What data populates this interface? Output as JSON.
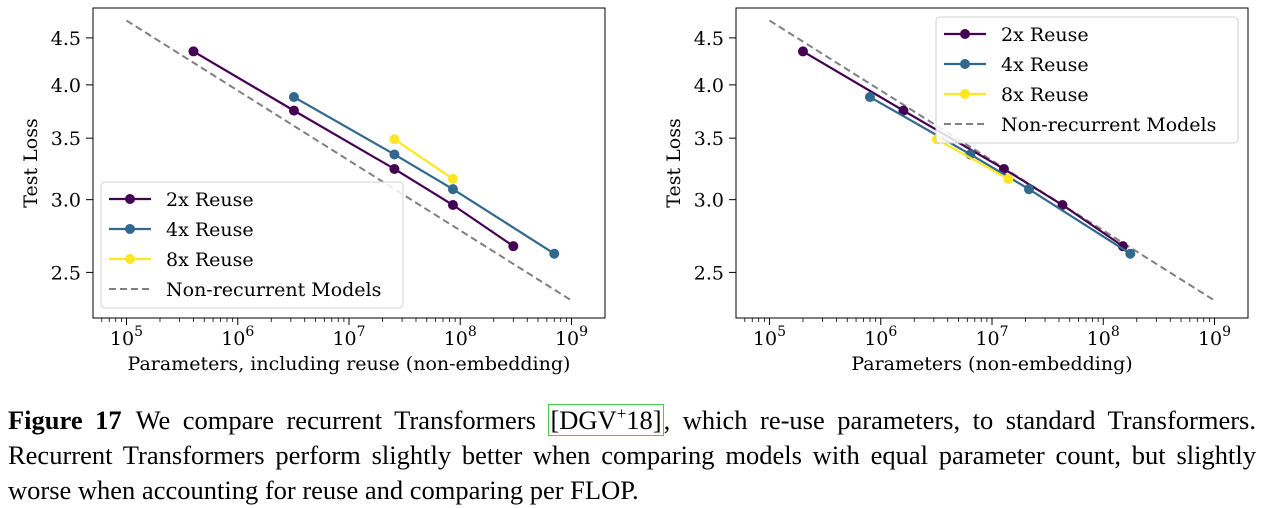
{
  "chart_data": [
    {
      "type": "line",
      "xscale": "log",
      "yscale": "log",
      "xlabel": "Parameters, including reuse (non-embedding)",
      "ylabel": "Test Loss",
      "xlim": [
        50000,
        2000000000
      ],
      "ylim": [
        2.23,
        4.85
      ],
      "xticks": [
        100000,
        1000000,
        10000000,
        100000000,
        1000000000
      ],
      "xtick_exponents": [
        "5",
        "6",
        "7",
        "8",
        "9"
      ],
      "yticks": [
        2.5,
        3.0,
        3.5,
        4.0,
        4.5
      ],
      "ytick_labels": [
        "2.5",
        "3.0",
        "3.5",
        "4.0",
        "4.5"
      ],
      "legend_position": "lower-left",
      "series": [
        {
          "name": "2x Reuse",
          "color": "#440154",
          "style": "solid-marker",
          "x": [
            400000,
            3200000,
            25600000,
            86000000,
            300000000
          ],
          "y": [
            4.35,
            3.75,
            3.24,
            2.96,
            2.67
          ]
        },
        {
          "name": "4x Reuse",
          "color": "#31688e",
          "style": "solid-marker",
          "x": [
            3200000,
            25600000,
            86000000,
            700000000
          ],
          "y": [
            3.88,
            3.36,
            3.08,
            2.62
          ]
        },
        {
          "name": "8x Reuse",
          "color": "#fde725",
          "style": "solid-marker",
          "x": [
            25600000,
            86000000
          ],
          "y": [
            3.49,
            3.16
          ]
        },
        {
          "name": "Non-recurrent Models",
          "color": "#808080",
          "style": "dashed",
          "x": [
            100000,
            1000000000
          ],
          "y": [
            4.7,
            2.33
          ]
        }
      ]
    },
    {
      "type": "line",
      "xscale": "log",
      "yscale": "log",
      "xlabel": "Parameters (non-embedding)",
      "ylabel": "Test Loss",
      "xlim": [
        50000,
        2000000000
      ],
      "ylim": [
        2.23,
        4.85
      ],
      "xticks": [
        100000,
        1000000,
        10000000,
        100000000,
        1000000000
      ],
      "xtick_exponents": [
        "5",
        "6",
        "7",
        "8",
        "9"
      ],
      "yticks": [
        2.5,
        3.0,
        3.5,
        4.0,
        4.5
      ],
      "ytick_labels": [
        "2.5",
        "3.0",
        "3.5",
        "4.0",
        "4.5"
      ],
      "legend_position": "upper-right",
      "series": [
        {
          "name": "2x Reuse",
          "color": "#440154",
          "style": "solid-marker",
          "x": [
            200000,
            1600000,
            12800000,
            43000000,
            150000000
          ],
          "y": [
            4.35,
            3.75,
            3.24,
            2.96,
            2.67
          ]
        },
        {
          "name": "4x Reuse",
          "color": "#31688e",
          "style": "solid-marker",
          "x": [
            800000,
            6400000,
            21500000,
            175000000
          ],
          "y": [
            3.88,
            3.36,
            3.08,
            2.62
          ]
        },
        {
          "name": "8x Reuse",
          "color": "#fde725",
          "style": "solid-marker",
          "x": [
            3200000,
            14000000
          ],
          "y": [
            3.49,
            3.16
          ]
        },
        {
          "name": "Non-recurrent Models",
          "color": "#808080",
          "style": "dashed",
          "x": [
            100000,
            1000000000
          ],
          "y": [
            4.7,
            2.33
          ]
        }
      ]
    }
  ],
  "caption": {
    "label": "Figure 17",
    "text_before": "We compare recurrent Transformers ",
    "cite_main": "DGV",
    "cite_sup": "+",
    "cite_year": "18",
    "text_after": ", which re-use parameters, to standard Transformers. Recurrent Transformers perform slightly better when comparing models with equal parameter count, but slightly worse when accounting for reuse and comparing per FLOP."
  }
}
